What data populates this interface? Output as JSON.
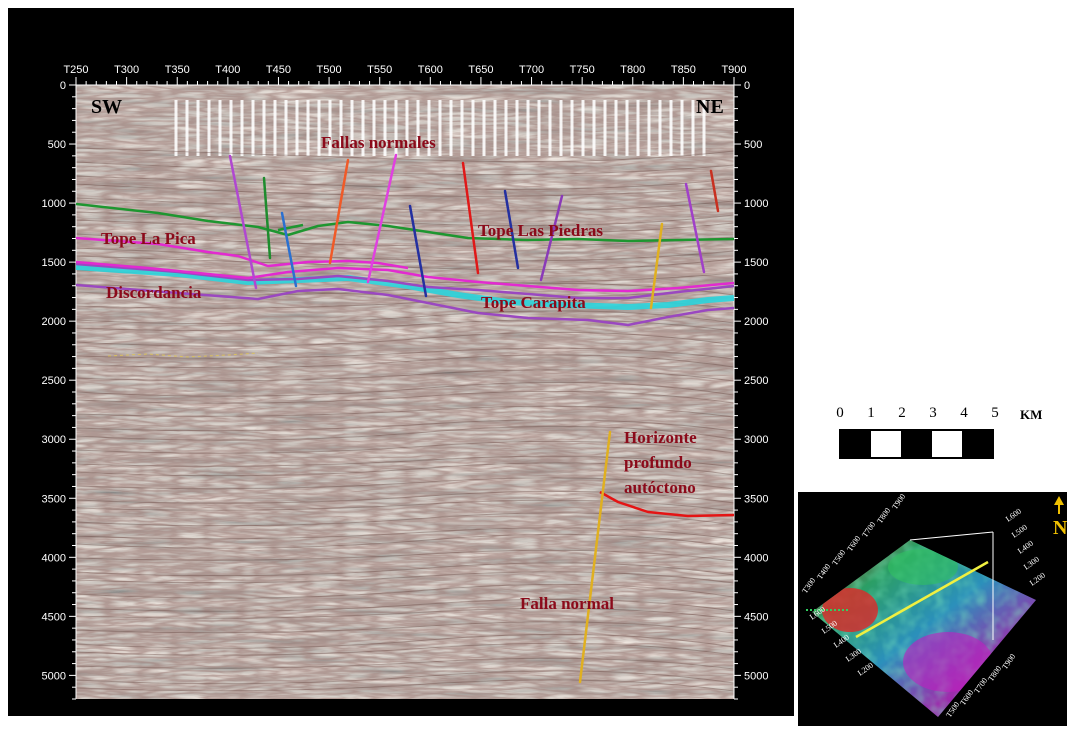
{
  "section": {
    "trace_labels": [
      "T250",
      "T300",
      "T350",
      "T400",
      "T450",
      "T500",
      "T550",
      "T600",
      "T650",
      "T700",
      "T750",
      "T800",
      "T850",
      "T900"
    ],
    "depth_labels": [
      "0",
      "500",
      "1000",
      "1500",
      "2000",
      "2500",
      "3000",
      "3500",
      "4000",
      "4500",
      "5000"
    ],
    "direction_left": "SW",
    "direction_right": "NE",
    "annotations": {
      "fallas_normales": "Fallas normales",
      "tope_la_pica": "Tope La Pica",
      "tope_las_piedras": "Tope Las Piedras",
      "discordancia": "Discordancia",
      "tope_carapita": "Tope Carapita",
      "horizonte_1": "Horizonte",
      "horizonte_2": "profundo",
      "horizonte_3": "autóctono",
      "falla_normal": "Falla normal"
    },
    "colors": {
      "green_horizon": "#1e8c2e",
      "pink_horizon": "#e020c8",
      "cyan_band": "#20d8e0",
      "purple_horizon": "#8a3ab8",
      "red_horizon": "#e01010",
      "yellow_fault": "#e0b020",
      "annotation_text": "#8b0a1a"
    }
  },
  "scale_bar": {
    "numbers": [
      "0",
      "1",
      "2",
      "3",
      "4",
      "5"
    ],
    "unit": "KM"
  },
  "location_map": {
    "north_label": "N",
    "labels_top": [
      "T900",
      "T800",
      "T700",
      "T600",
      "T500",
      "T400",
      "T300"
    ],
    "labels_right": [
      "L600",
      "L500",
      "L400",
      "L300",
      "L200"
    ],
    "labels_left": [
      "L600",
      "L500",
      "L400",
      "L300",
      "L200"
    ],
    "labels_bottom": [
      "T900",
      "T800",
      "T700",
      "T600",
      "T500"
    ],
    "colors": {
      "line": "#f0f040",
      "north": "#f0c000"
    }
  }
}
